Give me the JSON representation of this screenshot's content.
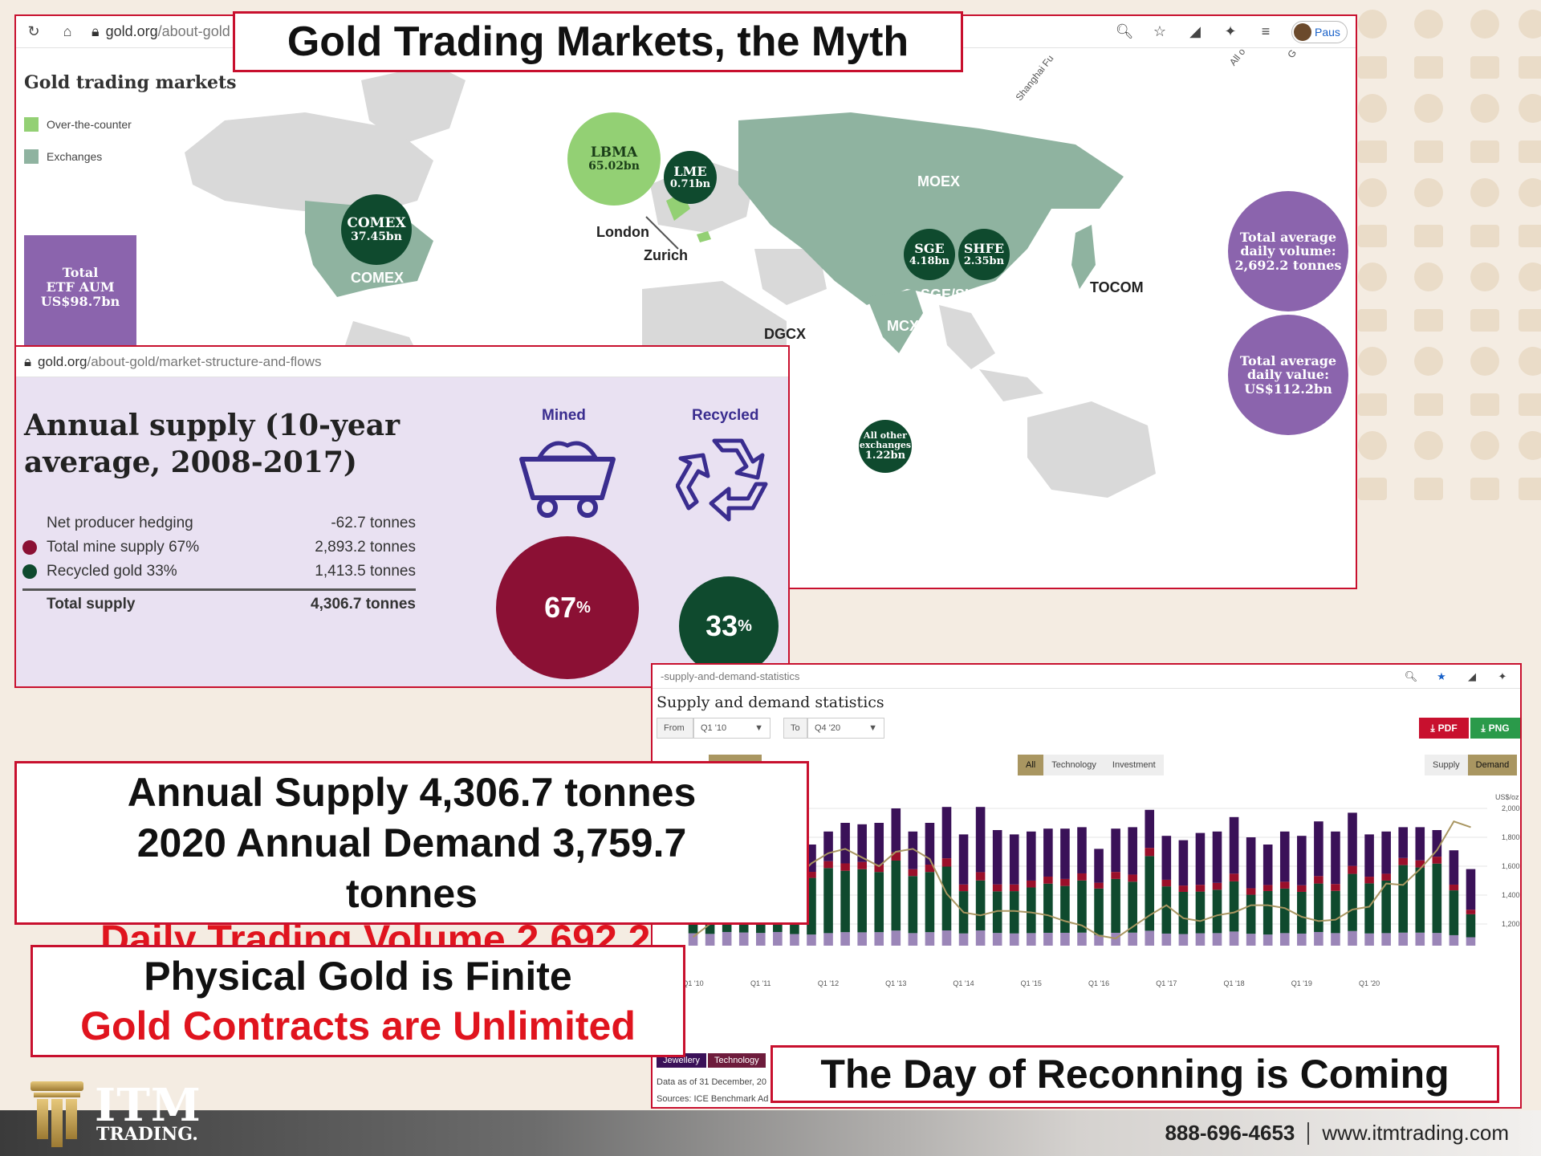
{
  "slide": {
    "headline": "Gold Trading Markets, the Myth",
    "callout_supply": [
      "Annual Supply 4,306.7 tonnes",
      "2020 Annual Demand 3,759.7",
      "tonnes"
    ],
    "callout_overlap": "Daily Trading Volume 2,692.2",
    "callout_finite_line1": "Physical Gold is Finite",
    "callout_finite_line2": "Gold Contracts are Unlimited",
    "callout_day": "The Day of Reconning is Coming",
    "accent_red": "#c8102e"
  },
  "map_panel": {
    "url_host": "gold.org",
    "url_path": "/about-gold",
    "profile_label": "Paus",
    "title": "Gold trading markets",
    "legend": [
      {
        "label": "Over-the-counter",
        "color": "#93d074"
      },
      {
        "label": "Exchanges",
        "color": "#8fb3a0"
      }
    ],
    "etf": {
      "line1": "Total",
      "line2": "ETF AUM",
      "line3": "US$98.7bn"
    },
    "bubbles": {
      "lbma": {
        "name": "LBMA",
        "value": "65.02bn"
      },
      "lme": {
        "name": "LME",
        "value": "0.71bn"
      },
      "comex": {
        "name": "COMEX",
        "value": "37.45bn"
      },
      "sge": {
        "name": "SGE",
        "value": "4.18bn"
      },
      "shfe": {
        "name": "SHFE",
        "value": "2.35bn"
      },
      "other": {
        "name1": "All other",
        "name2": "exchanges",
        "value": "1.22bn"
      },
      "volume": {
        "line1": "Total average",
        "line2": "daily volume:",
        "line3": "2,692.2 tonnes"
      },
      "value": {
        "line1": "Total average",
        "line2": "daily value:",
        "line3": "US$112.2bn"
      }
    },
    "labels": {
      "comex": "COMEX",
      "london": "London",
      "zurich": "Zurich",
      "moex": "MOEX",
      "sge_shfe": "SGE/SHFE",
      "tocom": "TOCOM",
      "dgcx": "DGCX",
      "mcx": "MCX",
      "shanghai": "Shanghai Fu",
      "all": "All o",
      "g": "G"
    }
  },
  "supply_panel": {
    "url_host": "gold.org",
    "url_path": "/about-gold/market-structure-and-flows",
    "title_line1": "Annual supply (10-year",
    "title_line2": "average, 2008-2017)",
    "rows": [
      {
        "label": "Net producer hedging",
        "value": "-62.7 tonnes",
        "dot": ""
      },
      {
        "label": "Total mine supply 67%",
        "value": "2,893.2 tonnes",
        "dot": "#8b1034"
      },
      {
        "label": "Recycled gold 33%",
        "value": "1,413.5 tonnes",
        "dot": "#0f4a2e"
      }
    ],
    "total": {
      "label": "Total supply",
      "value": "4,306.7 tonnes"
    },
    "mined_label": "Mined",
    "recycled_label": "Recycled",
    "mined_pct": "67",
    "recycled_pct": "33",
    "pct_sign": "%",
    "mined_color": "#8b1034",
    "recycled_color": "#0f4a2e"
  },
  "chart_panel": {
    "url_fragment": "-supply-and-demand-statistics",
    "title": "Supply and demand statistics",
    "from_label": "From",
    "from_value": "Q1 '10",
    "to_label": "To",
    "to_value": "Q4 '20",
    "pdf_label": "PDF",
    "png_label": "PNG",
    "filters": [
      "All",
      "Technology",
      "Investment"
    ],
    "toggle": [
      "Supply",
      "Demand"
    ],
    "legend_tabs": [
      "Jewellery",
      "Technology"
    ],
    "data_note": "Data as of 31 December, 20",
    "sources_note": "Sources: ICE Benchmark Ad",
    "unit_label": "US$/oz"
  },
  "chart_data": {
    "type": "bar",
    "stacked": true,
    "x_tick_labels": [
      "Q1 '10",
      "Q1 '11",
      "Q1 '12",
      "Q1 '13",
      "Q1 '14",
      "Q1 '15",
      "Q1 '16",
      "Q1 '17",
      "Q1 '18",
      "Q1 '19",
      "Q1 '20"
    ],
    "y2_ticks": [
      "2,000",
      "1,800",
      "1,600",
      "1,400",
      "1,200"
    ],
    "y2_values": [
      2000,
      1800,
      1600,
      1400,
      1200
    ],
    "y2_range": [
      1050,
      2050
    ],
    "series_colors": {
      "bottom": "#9b86b8",
      "middle": "#0f4a2e",
      "red": "#9a0f2a",
      "top": "#3a1158"
    },
    "bar_totals": [
      0.78,
      0.74,
      0.86,
      0.83,
      0.8,
      0.86,
      0.73,
      0.7,
      0.79,
      0.85,
      0.84,
      0.85,
      0.95,
      0.79,
      0.85,
      0.96,
      0.77,
      0.96,
      0.8,
      0.77,
      0.79,
      0.81,
      0.81,
      0.82,
      0.67,
      0.81,
      0.82,
      0.94,
      0.76,
      0.73,
      0.78,
      0.79,
      0.89,
      0.75,
      0.7,
      0.79,
      0.76,
      0.86,
      0.79,
      0.92,
      0.77,
      0.79,
      0.82,
      0.82,
      0.8,
      0.66,
      0.53
    ],
    "green_share": [
      0.5,
      0.52,
      0.48,
      0.55,
      0.53,
      0.47,
      0.54,
      0.56,
      0.57,
      0.5,
      0.52,
      0.49,
      0.51,
      0.5,
      0.49,
      0.46,
      0.38,
      0.36,
      0.36,
      0.38,
      0.4,
      0.42,
      0.4,
      0.44,
      0.48,
      0.46,
      0.43,
      0.55,
      0.43,
      0.4,
      0.37,
      0.38,
      0.39,
      0.36,
      0.43,
      0.39,
      0.38,
      0.39,
      0.37,
      0.43,
      0.45,
      0.46,
      0.57,
      0.55,
      0.6,
      0.47,
      0.3
    ],
    "gold_price": [
      1110,
      1200,
      1230,
      1380,
      1390,
      1420,
      1500,
      1620,
      1690,
      1720,
      1660,
      1600,
      1700,
      1720,
      1650,
      1410,
      1280,
      1260,
      1290,
      1290,
      1280,
      1260,
      1220,
      1190,
      1120,
      1100,
      1180,
      1260,
      1330,
      1240,
      1220,
      1260,
      1280,
      1330,
      1330,
      1310,
      1250,
      1220,
      1230,
      1300,
      1320,
      1480,
      1470,
      1580,
      1710,
      1910,
      1870
    ]
  }
}
